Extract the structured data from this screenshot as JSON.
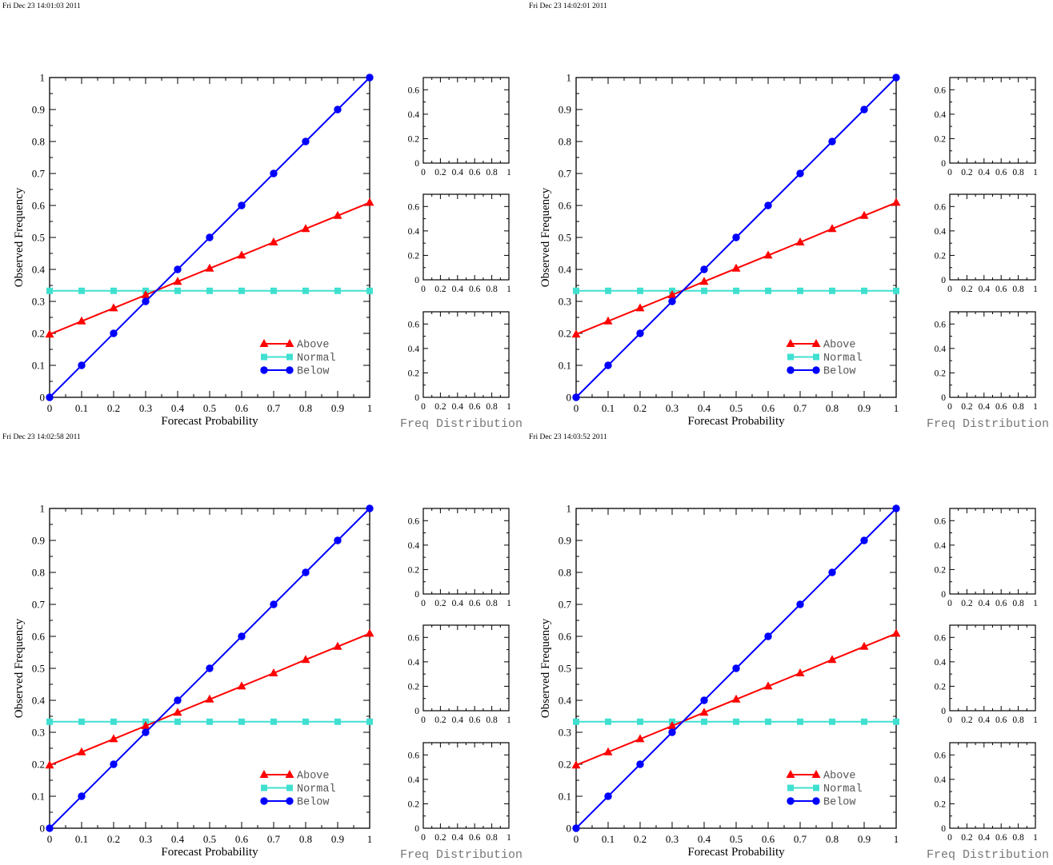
{
  "chart_data": [
    {
      "type": "line",
      "timestamp": "Fri Dec 23 14:01:03 2011",
      "xlabel": "Forecast Probability",
      "ylabel": "Observed Frequency",
      "xlim": [
        0,
        1
      ],
      "ylim": [
        0,
        1
      ],
      "x_ticks": [
        "0",
        "0.1",
        "0.2",
        "0.3",
        "0.4",
        "0.5",
        "0.6",
        "0.7",
        "0.8",
        "0.9",
        "1"
      ],
      "y_ticks": [
        "0",
        "0.1",
        "0.2",
        "0.3",
        "0.4",
        "0.5",
        "0.6",
        "0.7",
        "0.8",
        "0.9",
        "1"
      ],
      "legend_position": "bottom-right",
      "series": [
        {
          "name": "Above",
          "color": "#ff0000",
          "marker": "triangle",
          "x": [
            0,
            0.1,
            0.2,
            0.3,
            0.4,
            0.5,
            0.6,
            0.7,
            0.8,
            0.9,
            1
          ],
          "y": [
            0.197,
            0.238,
            0.279,
            0.32,
            0.362,
            0.403,
            0.444,
            0.485,
            0.527,
            0.568,
            0.609
          ]
        },
        {
          "name": "Normal",
          "color": "#40e0d0",
          "marker": "square",
          "x": [
            0,
            0.1,
            0.2,
            0.3,
            0.4,
            0.5,
            0.6,
            0.7,
            0.8,
            0.9,
            1
          ],
          "y": [
            0.333,
            0.333,
            0.333,
            0.333,
            0.333,
            0.333,
            0.333,
            0.333,
            0.333,
            0.333,
            0.333
          ]
        },
        {
          "name": "Below",
          "color": "#0000ff",
          "marker": "circle",
          "x": [
            0,
            0.1,
            0.2,
            0.3,
            0.4,
            0.5,
            0.6,
            0.7,
            0.8,
            0.9,
            1
          ],
          "y": [
            0,
            0.1,
            0.2,
            0.3,
            0.4,
            0.5,
            0.6,
            0.7,
            0.8,
            0.9,
            1
          ]
        }
      ],
      "freq_distribution": {
        "title": "Freq Distribution",
        "panels": 3,
        "xlim": [
          0,
          1
        ],
        "ylim": [
          0,
          0.7
        ],
        "x_ticks": [
          "0",
          "0.2",
          "0.4",
          "0.6",
          "0.8",
          "1"
        ],
        "y_ticks": [
          "0",
          "0.2",
          "0.4",
          "0.6"
        ]
      }
    },
    {
      "type": "line",
      "timestamp": "Fri Dec 23 14:02:01 2011",
      "xlabel": "Forecast Probability",
      "ylabel": "Observed Frequency",
      "xlim": [
        0,
        1
      ],
      "ylim": [
        0,
        1
      ],
      "x_ticks": [
        "0",
        "0.1",
        "0.2",
        "0.3",
        "0.4",
        "0.5",
        "0.6",
        "0.7",
        "0.8",
        "0.9",
        "1"
      ],
      "y_ticks": [
        "0",
        "0.1",
        "0.2",
        "0.3",
        "0.4",
        "0.5",
        "0.6",
        "0.7",
        "0.8",
        "0.9",
        "1"
      ],
      "legend_position": "bottom-right",
      "series": [
        {
          "name": "Above",
          "color": "#ff0000",
          "marker": "triangle",
          "x": [
            0,
            0.1,
            0.2,
            0.3,
            0.4,
            0.5,
            0.6,
            0.7,
            0.8,
            0.9,
            1
          ],
          "y": [
            0.197,
            0.238,
            0.279,
            0.32,
            0.362,
            0.403,
            0.444,
            0.485,
            0.527,
            0.568,
            0.609
          ]
        },
        {
          "name": "Normal",
          "color": "#40e0d0",
          "marker": "square",
          "x": [
            0,
            0.1,
            0.2,
            0.3,
            0.4,
            0.5,
            0.6,
            0.7,
            0.8,
            0.9,
            1
          ],
          "y": [
            0.333,
            0.333,
            0.333,
            0.333,
            0.333,
            0.333,
            0.333,
            0.333,
            0.333,
            0.333,
            0.333
          ]
        },
        {
          "name": "Below",
          "color": "#0000ff",
          "marker": "circle",
          "x": [
            0,
            0.1,
            0.2,
            0.3,
            0.4,
            0.5,
            0.6,
            0.7,
            0.8,
            0.9,
            1
          ],
          "y": [
            0,
            0.1,
            0.2,
            0.3,
            0.4,
            0.5,
            0.6,
            0.7,
            0.8,
            0.9,
            1
          ]
        }
      ],
      "freq_distribution": {
        "title": "Freq Distribution",
        "panels": 3,
        "xlim": [
          0,
          1
        ],
        "ylim": [
          0,
          0.7
        ],
        "x_ticks": [
          "0",
          "0.2",
          "0.4",
          "0.6",
          "0.8",
          "1"
        ],
        "y_ticks": [
          "0",
          "0.2",
          "0.4",
          "0.6"
        ]
      }
    },
    {
      "type": "line",
      "timestamp": "Fri Dec 23 14:02:58 2011",
      "xlabel": "Forecast Probability",
      "ylabel": "Observed Frequency",
      "xlim": [
        0,
        1
      ],
      "ylim": [
        0,
        1
      ],
      "x_ticks": [
        "0",
        "0.1",
        "0.2",
        "0.3",
        "0.4",
        "0.5",
        "0.6",
        "0.7",
        "0.8",
        "0.9",
        "1"
      ],
      "y_ticks": [
        "0",
        "0.1",
        "0.2",
        "0.3",
        "0.4",
        "0.5",
        "0.6",
        "0.7",
        "0.8",
        "0.9",
        "1"
      ],
      "legend_position": "bottom-right",
      "series": [
        {
          "name": "Above",
          "color": "#ff0000",
          "marker": "triangle",
          "x": [
            0,
            0.1,
            0.2,
            0.3,
            0.4,
            0.5,
            0.6,
            0.7,
            0.8,
            0.9,
            1
          ],
          "y": [
            0.197,
            0.238,
            0.279,
            0.32,
            0.362,
            0.403,
            0.444,
            0.485,
            0.527,
            0.568,
            0.609
          ]
        },
        {
          "name": "Normal",
          "color": "#40e0d0",
          "marker": "square",
          "x": [
            0,
            0.1,
            0.2,
            0.3,
            0.4,
            0.5,
            0.6,
            0.7,
            0.8,
            0.9,
            1
          ],
          "y": [
            0.333,
            0.333,
            0.333,
            0.333,
            0.333,
            0.333,
            0.333,
            0.333,
            0.333,
            0.333,
            0.333
          ]
        },
        {
          "name": "Below",
          "color": "#0000ff",
          "marker": "circle",
          "x": [
            0,
            0.1,
            0.2,
            0.3,
            0.4,
            0.5,
            0.6,
            0.7,
            0.8,
            0.9,
            1
          ],
          "y": [
            0,
            0.1,
            0.2,
            0.3,
            0.4,
            0.5,
            0.6,
            0.7,
            0.8,
            0.9,
            1
          ]
        }
      ],
      "freq_distribution": {
        "title": "Freq Distribution",
        "panels": 3,
        "xlim": [
          0,
          1
        ],
        "ylim": [
          0,
          0.7
        ],
        "x_ticks": [
          "0",
          "0.2",
          "0.4",
          "0.6",
          "0.8",
          "1"
        ],
        "y_ticks": [
          "0",
          "0.2",
          "0.4",
          "0.6"
        ]
      }
    },
    {
      "type": "line",
      "timestamp": "Fri Dec 23 14:03:52 2011",
      "xlabel": "Forecast Probability",
      "ylabel": "Observed Frequency",
      "xlim": [
        0,
        1
      ],
      "ylim": [
        0,
        1
      ],
      "x_ticks": [
        "0",
        "0.1",
        "0.2",
        "0.3",
        "0.4",
        "0.5",
        "0.6",
        "0.7",
        "0.8",
        "0.9",
        "1"
      ],
      "y_ticks": [
        "0",
        "0.1",
        "0.2",
        "0.3",
        "0.4",
        "0.5",
        "0.6",
        "0.7",
        "0.8",
        "0.9",
        "1"
      ],
      "legend_position": "bottom-right",
      "series": [
        {
          "name": "Above",
          "color": "#ff0000",
          "marker": "triangle",
          "x": [
            0,
            0.1,
            0.2,
            0.3,
            0.4,
            0.5,
            0.6,
            0.7,
            0.8,
            0.9,
            1
          ],
          "y": [
            0.197,
            0.238,
            0.279,
            0.32,
            0.362,
            0.403,
            0.444,
            0.485,
            0.527,
            0.568,
            0.609
          ]
        },
        {
          "name": "Normal",
          "color": "#40e0d0",
          "marker": "square",
          "x": [
            0,
            0.1,
            0.2,
            0.3,
            0.4,
            0.5,
            0.6,
            0.7,
            0.8,
            0.9,
            1
          ],
          "y": [
            0.333,
            0.333,
            0.333,
            0.333,
            0.333,
            0.333,
            0.333,
            0.333,
            0.333,
            0.333,
            0.333
          ]
        },
        {
          "name": "Below",
          "color": "#0000ff",
          "marker": "circle",
          "x": [
            0,
            0.1,
            0.2,
            0.3,
            0.4,
            0.5,
            0.6,
            0.7,
            0.8,
            0.9,
            1
          ],
          "y": [
            0,
            0.1,
            0.2,
            0.3,
            0.4,
            0.5,
            0.6,
            0.7,
            0.8,
            0.9,
            1
          ]
        }
      ],
      "freq_distribution": {
        "title": "Freq Distribution",
        "panels": 3,
        "xlim": [
          0,
          1
        ],
        "ylim": [
          0,
          0.7
        ],
        "x_ticks": [
          "0",
          "0.2",
          "0.4",
          "0.6",
          "0.8",
          "1"
        ],
        "y_ticks": [
          "0",
          "0.2",
          "0.4",
          "0.6"
        ]
      }
    }
  ]
}
